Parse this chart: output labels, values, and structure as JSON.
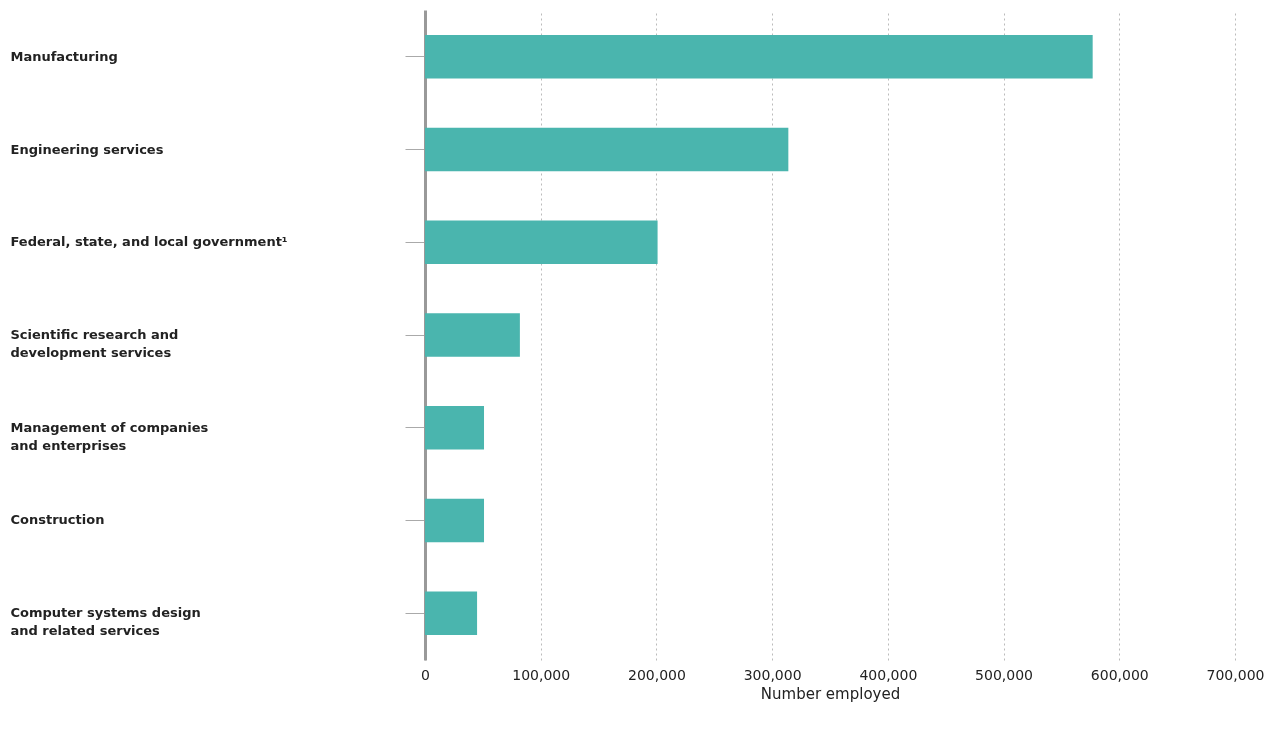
{
  "chart_data": {
    "type": "bar",
    "orientation": "horizontal",
    "xlabel": "Number employed",
    "categories": [
      "Manufacturing",
      "Engineering services",
      "Federal, state, and local government¹",
      "Scientific research and\ndevelopment services",
      "Management of companies\nand enterprises",
      "Construction",
      "Computer systems design\nand related services"
    ],
    "values": [
      577000,
      314000,
      201000,
      82000,
      51000,
      51000,
      45000
    ],
    "color": "#4ab5ae",
    "xlim": [
      0,
      700000
    ],
    "xticks": [
      0,
      {
        "value": 100000,
        "label": "100,000"
      },
      {
        "value": 200000,
        "label": "200,000"
      },
      {
        "value": 300000,
        "label": "300,000"
      },
      {
        "value": 400000,
        "label": "400,000"
      },
      {
        "value": 500000,
        "label": "500,000"
      },
      {
        "value": 600000,
        "label": "600,000"
      },
      {
        "value": 700000,
        "label": "700,000"
      }
    ],
    "grid": "x"
  }
}
